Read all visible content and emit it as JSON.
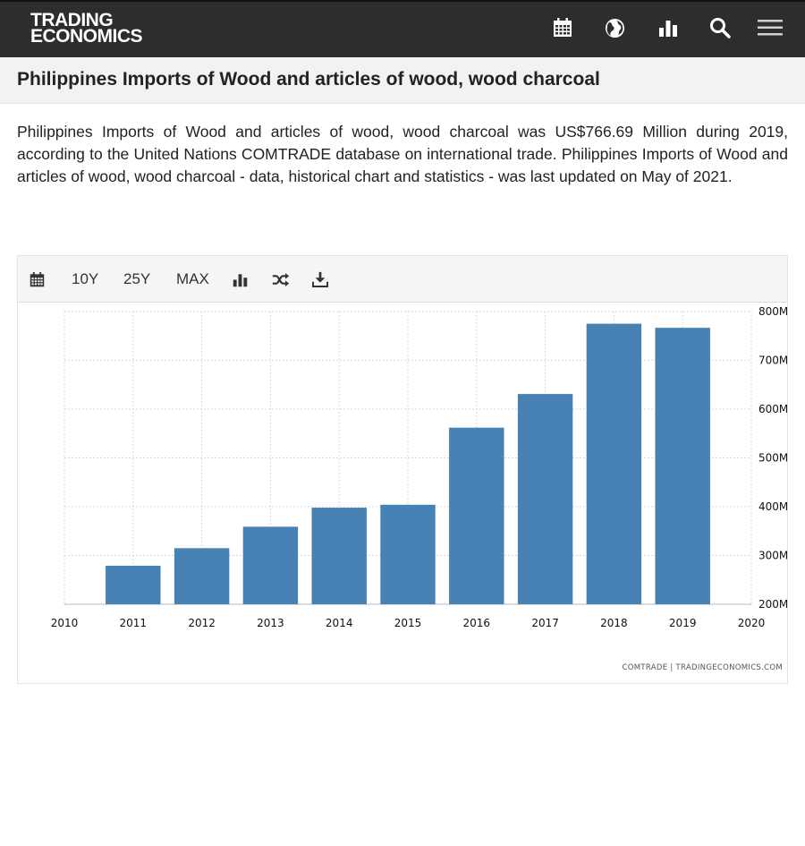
{
  "header": {
    "logo_line1": "TRADING",
    "logo_line2": "ECONOMICS",
    "icons": [
      "calendar-icon",
      "globe-icon",
      "bar-chart-icon",
      "search-icon",
      "menu-icon"
    ]
  },
  "page": {
    "title": "Philippines Imports of Wood and articles of wood, wood charcoal",
    "description": "Philippines Imports of Wood and articles of wood, wood charcoal was US$766.69 Million during 2019, according to the United Nations COMTRADE database on international trade. Philippines Imports of Wood and articles of wood, wood charcoal - data, historical chart and statistics - was last updated on May of 2021."
  },
  "toolbar": {
    "range_10y": "10Y",
    "range_25y": "25Y",
    "range_max": "MAX",
    "icons": [
      "calendar-icon",
      "bar-chart-icon",
      "shuffle-icon",
      "download-icon"
    ]
  },
  "colors": {
    "bar": "#4682b4",
    "header_bg": "#2d2d2d",
    "grid": "#d9d9d9"
  },
  "chart_data": {
    "type": "bar",
    "title": "",
    "xlabel": "",
    "ylabel": "",
    "categories": [
      "2011",
      "2012",
      "2013",
      "2014",
      "2015",
      "2016",
      "2017",
      "2018",
      "2019"
    ],
    "values": [
      279,
      315,
      359,
      398,
      404,
      562,
      631,
      775,
      766.69
    ],
    "x_ticks": [
      "2010",
      "2011",
      "2012",
      "2013",
      "2014",
      "2015",
      "2016",
      "2017",
      "2018",
      "2019",
      "2020"
    ],
    "xlim": [
      2010,
      2020
    ],
    "ylim": [
      200,
      800
    ],
    "y_ticks": [
      200,
      300,
      400,
      500,
      600,
      700,
      800
    ],
    "y_tick_labels": [
      "200M",
      "300M",
      "400M",
      "500M",
      "600M",
      "700M",
      "800M"
    ],
    "y_axis_side": "right",
    "grid": true,
    "legend": "none",
    "source": "COMTRADE | TRADINGECONOMICS.COM"
  }
}
